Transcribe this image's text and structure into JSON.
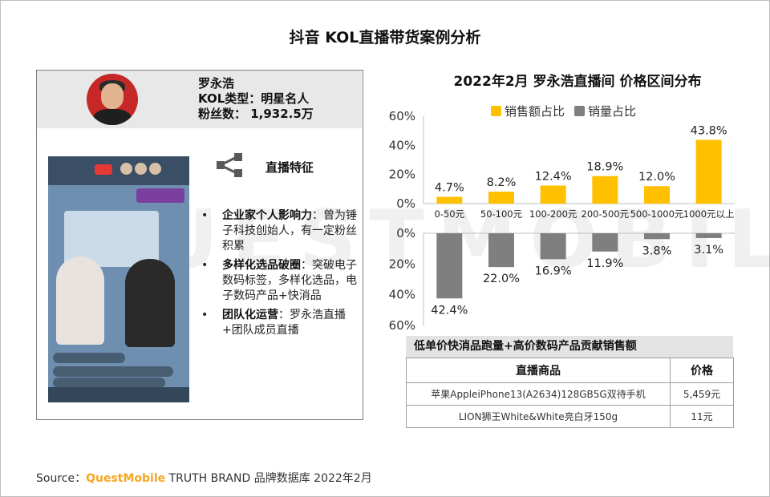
{
  "page": {
    "title": "抖音 KOL直播带货案例分析",
    "source_prefix": "Source：",
    "source_brand": "QuestMobile",
    "source_rest": " TRUTH BRAND 品牌数据库 2022年2月",
    "watermark": "QUESTMOBILE"
  },
  "kol": {
    "name": "罗永浩",
    "type": "KOL类型：明星名人",
    "fans": "粉丝数： 1,932.5万",
    "feature_title": "直播特征",
    "features": [
      {
        "label": "企业家个人影响力",
        "text": "：曾为锤子科技创始人，有一定粉丝积累"
      },
      {
        "label": "多样化选品破圈",
        "text": "：突破电子数码标签，多样化选品，电子数码产品+快消品"
      },
      {
        "label": "团队化运营",
        "text": "：罗永浩直播+团队成员直播"
      }
    ]
  },
  "chart_data": {
    "type": "bar",
    "title": "2022年2月 罗永浩直播间 价格区间分布",
    "categories": [
      "0-50元",
      "50-100元",
      "100-200元",
      "200-500元",
      "500-1000元",
      "1000元以上"
    ],
    "series": [
      {
        "name": "销售额占比",
        "values": [
          4.7,
          8.2,
          12.4,
          18.9,
          12.0,
          43.8
        ],
        "labels": [
          "4.7%",
          "8.2%",
          "12.4%",
          "18.9%",
          "12.0%",
          "43.8%"
        ],
        "color": "#FFC000"
      },
      {
        "name": "销量占比",
        "values": [
          42.4,
          22.0,
          16.9,
          11.9,
          3.8,
          3.1
        ],
        "labels": [
          "42.4%",
          "22.0%",
          "16.9%",
          "11.9%",
          "3.8%",
          "3.1%"
        ],
        "color": "#7F7F7F"
      }
    ],
    "upper_axis": {
      "ylim": [
        0,
        60
      ],
      "ticks": [
        "0%",
        "20%",
        "40%",
        "60%"
      ]
    },
    "lower_axis": {
      "ylim": [
        0,
        60
      ],
      "ticks": [
        "0%",
        "20%",
        "40%",
        "60%"
      ],
      "inverted": true
    },
    "legend_position": "top"
  },
  "table": {
    "title": "低单价快消品跑量+高价数码产品贡献销售额",
    "headers": [
      "直播商品",
      "价格"
    ],
    "rows": [
      [
        "苹果AppleiPhone13(A2634)128GB5G双待手机",
        "5,459元"
      ],
      [
        "LION狮王White&White亮白牙150g",
        "11元"
      ]
    ]
  }
}
